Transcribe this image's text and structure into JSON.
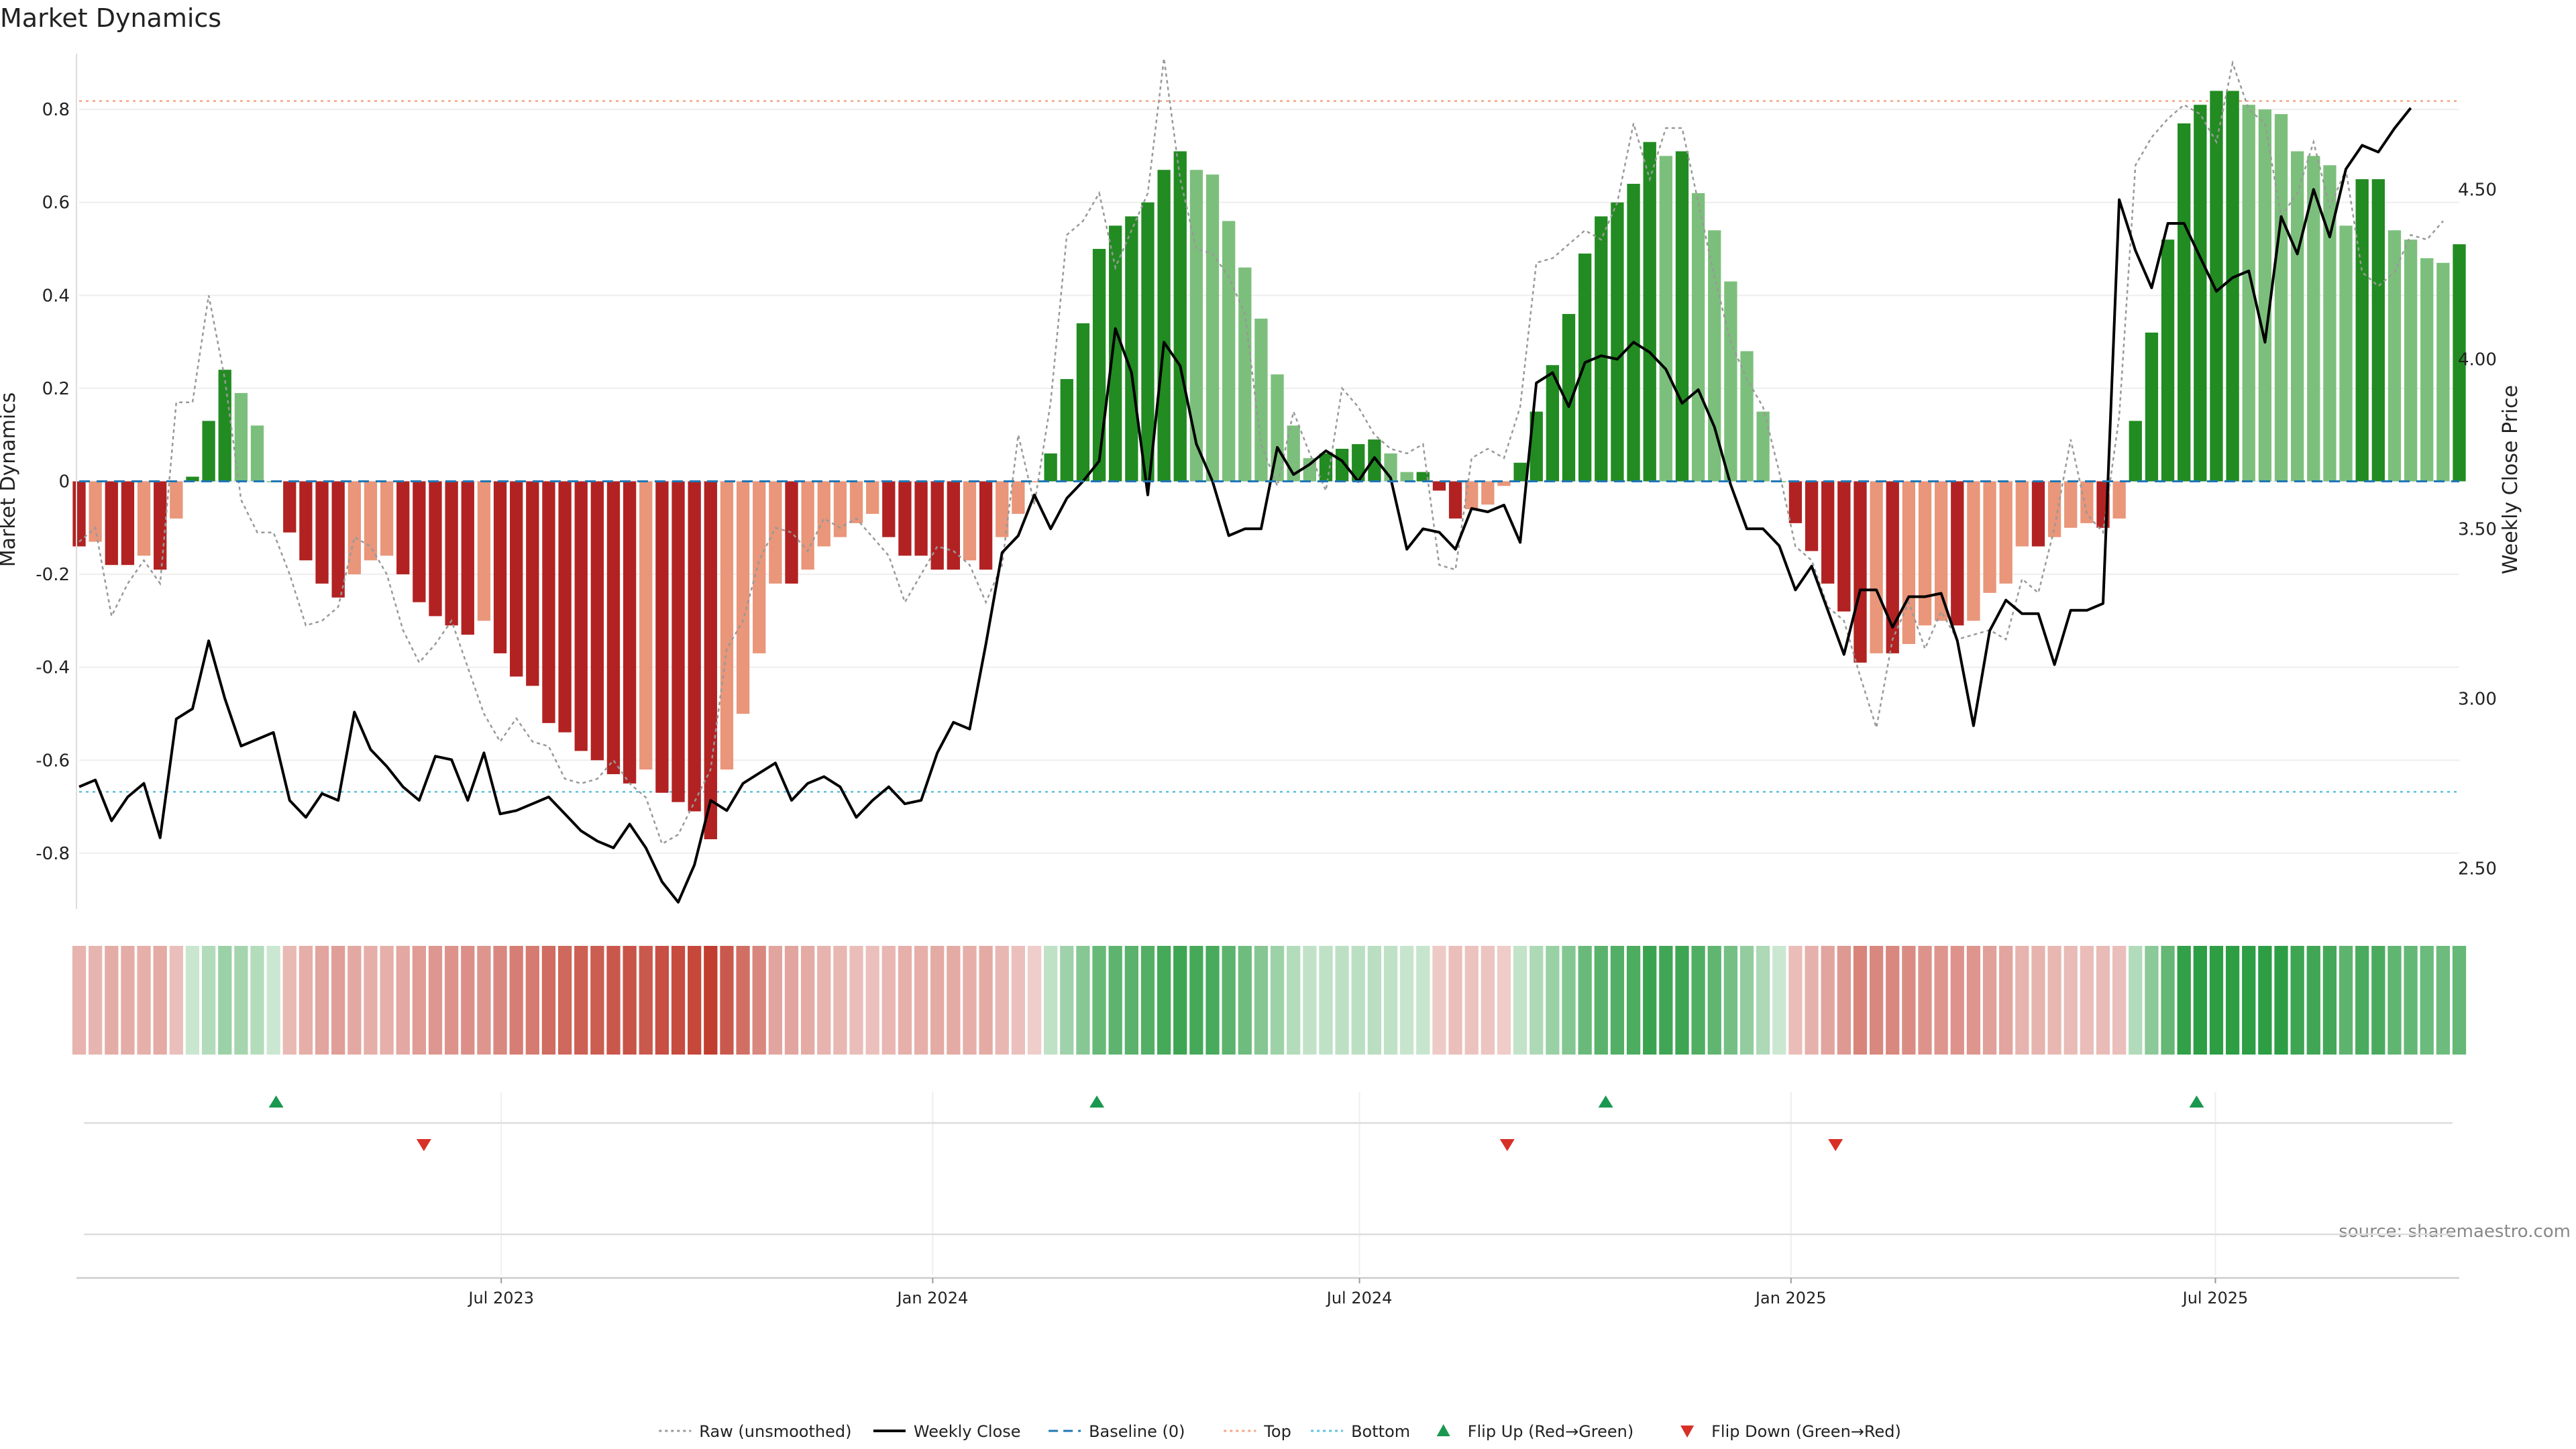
{
  "chart_data": {
    "type": "bar",
    "title": "Market Dynamics",
    "ylabel_left": "Market Dynamics",
    "ylabel_right": "Weekly Close Price",
    "source": "source: sharemaestro.com",
    "x_start": "2023-01-02",
    "x_end": "2025-10-13",
    "xticks": [
      {
        "date": "2023-07-01",
        "label": "Jul 2023"
      },
      {
        "date": "2024-01-01",
        "label": "Jan 2024"
      },
      {
        "date": "2024-07-01",
        "label": "Jul 2024"
      },
      {
        "date": "2025-01-01",
        "label": "Jan 2025"
      },
      {
        "date": "2025-07-01",
        "label": "Jul 2025"
      }
    ],
    "yleft": {
      "min": -0.92,
      "max": 0.92,
      "ticks": [
        -0.8,
        -0.6,
        -0.4,
        -0.2,
        0,
        0.2,
        0.4,
        0.6,
        0.8
      ]
    },
    "yright": {
      "min": 2.38,
      "max": 4.9,
      "ticks": [
        2.5,
        3.0,
        3.5,
        4.0,
        4.5
      ],
      "tick_labels": [
        "2.50",
        "3.00",
        "3.50",
        "4.00",
        "4.50"
      ]
    },
    "top_level": 0.818,
    "bottom_level": -0.668,
    "baseline": 0,
    "colors": {
      "strong_green": "#228b22",
      "light_green": "#7cbf7c",
      "strong_red": "#b22222",
      "light_red": "#e9967a",
      "raw": "#999999",
      "close": "#000000",
      "baseline": "#1f77b4",
      "top": "#f4a582",
      "bottom": "#5bc0de",
      "flip_up": "#1a9850",
      "flip_down": "#d73027",
      "grid": "#eeeeee"
    },
    "flip_up_dates": [
      "2023-03-27",
      "2024-03-11",
      "2024-10-14",
      "2025-06-23"
    ],
    "flip_down_dates": [
      "2023-05-29",
      "2024-09-02",
      "2025-01-20"
    ],
    "legend": [
      {
        "label": "Raw (unsmoothed)",
        "kind": "dotted",
        "color": "#999999"
      },
      {
        "label": "Weekly Close",
        "kind": "solid",
        "color": "#000000"
      },
      {
        "label": "Baseline (0)",
        "kind": "dashed",
        "color": "#1f77b4"
      },
      {
        "label": "Top",
        "kind": "dotted",
        "color": "#f4a582"
      },
      {
        "label": "Bottom",
        "kind": "dotted",
        "color": "#5bc0de"
      },
      {
        "label": "Flip Up (Red→Green)",
        "kind": "tri-up",
        "color": "#1a9850"
      },
      {
        "label": "Flip Down (Green→Red)",
        "kind": "tri-down",
        "color": "#d73027"
      }
    ],
    "series": [
      {
        "name": "Market Dynamics",
        "values": [
          -0.14,
          -0.13,
          -0.18,
          -0.18,
          -0.16,
          -0.19,
          -0.08,
          0.01,
          0.13,
          0.24,
          0.19,
          0.12,
          0.0,
          -0.11,
          -0.17,
          -0.22,
          -0.25,
          -0.2,
          -0.17,
          -0.16,
          -0.2,
          -0.26,
          -0.29,
          -0.31,
          -0.33,
          -0.3,
          -0.37,
          -0.42,
          -0.44,
          -0.52,
          -0.54,
          -0.58,
          -0.6,
          -0.63,
          -0.65,
          -0.62,
          -0.67,
          -0.69,
          -0.71,
          -0.77,
          -0.62,
          -0.5,
          -0.37,
          -0.22,
          -0.22,
          -0.19,
          -0.14,
          -0.12,
          -0.09,
          -0.07,
          -0.12,
          -0.16,
          -0.16,
          -0.19,
          -0.19,
          -0.17,
          -0.19,
          -0.12,
          -0.07,
          -0.001,
          0.06,
          0.22,
          0.34,
          0.5,
          0.55,
          0.57,
          0.6,
          0.67,
          0.71,
          0.67,
          0.66,
          0.56,
          0.46,
          0.35,
          0.23,
          0.12,
          0.05,
          0.06,
          0.07,
          0.08,
          0.09,
          0.06,
          0.02,
          0.02,
          -0.02,
          -0.08,
          -0.06,
          -0.05,
          -0.01,
          0.04,
          0.15,
          0.25,
          0.36,
          0.49,
          0.57,
          0.6,
          0.64,
          0.73,
          0.7,
          0.71,
          0.62,
          0.54,
          0.43,
          0.28,
          0.15,
          0.0,
          -0.09,
          -0.15,
          -0.22,
          -0.28,
          -0.39,
          -0.37,
          -0.37,
          -0.35,
          -0.31,
          -0.3,
          -0.31,
          -0.3,
          -0.24,
          -0.22,
          -0.14,
          -0.14,
          -0.12,
          -0.1,
          -0.09,
          -0.1,
          -0.08,
          0.13,
          0.32,
          0.52,
          0.77,
          0.81,
          0.84,
          0.84,
          0.81,
          0.8,
          0.79,
          0.71,
          0.7,
          0.68,
          0.55,
          0.65,
          0.65,
          0.54,
          0.52,
          0.48,
          0.47,
          0.51
        ]
      },
      {
        "name": "Raw (unsmoothed)",
        "values": [
          -0.13,
          -0.1,
          -0.29,
          -0.22,
          -0.17,
          -0.22,
          0.17,
          0.17,
          0.4,
          0.22,
          -0.04,
          -0.11,
          -0.11,
          -0.2,
          -0.31,
          -0.3,
          -0.27,
          -0.12,
          -0.14,
          -0.2,
          -0.32,
          -0.39,
          -0.35,
          -0.3,
          -0.4,
          -0.5,
          -0.56,
          -0.51,
          -0.56,
          -0.57,
          -0.64,
          -0.65,
          -0.64,
          -0.6,
          -0.65,
          -0.68,
          -0.78,
          -0.76,
          -0.69,
          -0.62,
          -0.36,
          -0.3,
          -0.17,
          -0.1,
          -0.11,
          -0.15,
          -0.08,
          -0.1,
          -0.08,
          -0.12,
          -0.16,
          -0.26,
          -0.2,
          -0.14,
          -0.15,
          -0.18,
          -0.26,
          -0.18,
          0.1,
          -0.05,
          0.17,
          0.53,
          0.56,
          0.62,
          0.46,
          0.54,
          0.62,
          0.91,
          0.65,
          0.5,
          0.49,
          0.44,
          0.36,
          0.08,
          -0.01,
          0.15,
          0.06,
          -0.02,
          0.2,
          0.16,
          0.1,
          0.07,
          0.06,
          0.08,
          -0.18,
          -0.19,
          0.05,
          0.07,
          0.05,
          0.16,
          0.47,
          0.48,
          0.51,
          0.54,
          0.52,
          0.6,
          0.77,
          0.65,
          0.76,
          0.76,
          0.6,
          0.44,
          0.3,
          0.22,
          0.16,
          0.02,
          -0.14,
          -0.17,
          -0.27,
          -0.3,
          -0.42,
          -0.53,
          -0.34,
          -0.26,
          -0.36,
          -0.28,
          -0.34,
          -0.33,
          -0.32,
          -0.34,
          -0.21,
          -0.24,
          -0.1,
          0.09,
          -0.07,
          -0.11,
          0.14,
          0.68,
          0.74,
          0.78,
          0.81,
          0.79,
          0.73,
          0.9,
          0.8,
          0.77,
          0.57,
          0.62,
          0.73,
          0.59,
          0.67,
          0.45,
          0.42,
          0.45,
          0.53,
          0.52,
          0.56
        ]
      },
      {
        "name": "Weekly Close",
        "values": [
          2.74,
          2.76,
          2.64,
          2.71,
          2.75,
          2.59,
          2.94,
          2.97,
          3.17,
          3.0,
          2.86,
          2.88,
          2.9,
          2.7,
          2.65,
          2.72,
          2.7,
          2.96,
          2.85,
          2.8,
          2.74,
          2.7,
          2.83,
          2.82,
          2.7,
          2.84,
          2.66,
          2.67,
          2.69,
          2.71,
          2.66,
          2.61,
          2.58,
          2.56,
          2.63,
          2.56,
          2.46,
          2.4,
          2.51,
          2.7,
          2.67,
          2.75,
          2.78,
          2.81,
          2.7,
          2.75,
          2.77,
          2.74,
          2.65,
          2.7,
          2.74,
          2.69,
          2.7,
          2.84,
          2.93,
          2.91,
          3.16,
          3.43,
          3.48,
          3.6,
          3.5,
          3.59,
          3.64,
          3.7,
          4.09,
          3.96,
          3.6,
          4.05,
          3.98,
          3.75,
          3.64,
          3.48,
          3.5,
          3.5,
          3.74,
          3.66,
          3.69,
          3.73,
          3.7,
          3.64,
          3.71,
          3.65,
          3.44,
          3.5,
          3.49,
          3.44,
          3.56,
          3.55,
          3.57,
          3.46,
          3.93,
          3.96,
          3.86,
          3.99,
          4.01,
          4.0,
          4.05,
          4.02,
          3.97,
          3.87,
          3.91,
          3.8,
          3.63,
          3.5,
          3.5,
          3.45,
          3.32,
          3.39,
          3.26,
          3.13,
          3.32,
          3.32,
          3.21,
          3.3,
          3.3,
          3.31,
          3.17,
          2.92,
          3.2,
          3.29,
          3.25,
          3.25,
          3.1,
          3.26,
          3.26,
          3.28,
          4.47,
          4.32,
          4.21,
          4.4,
          4.4,
          4.3,
          4.2,
          4.24,
          4.26,
          4.05,
          4.42,
          4.31,
          4.5,
          4.36,
          4.56,
          4.63,
          4.61,
          4.68,
          4.74
        ]
      }
    ]
  }
}
